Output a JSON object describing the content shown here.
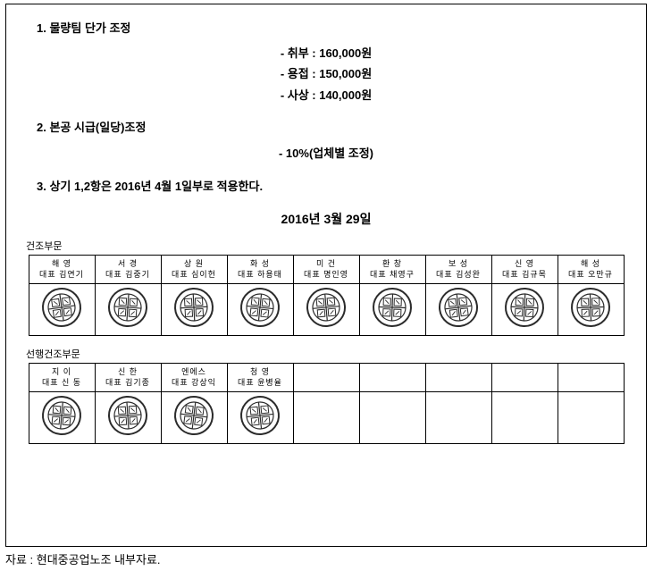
{
  "headings": {
    "item1": "1. 물량팀 단가 조정",
    "item2": "2. 본공 시급(일당)조정",
    "item3": "3. 상기 1,2항은 2016년 4월 1일부로 적용한다."
  },
  "prices": {
    "line1": "- 취부 : 160,000원",
    "line2": "- 용접 : 150,000원",
    "line3": "- 사상 : 140,000원"
  },
  "adjustment": "- 10%(업체별 조정)",
  "date": "2016년  3월  29일",
  "section1_label": "건조부문",
  "section2_label": "선행건조부문",
  "table1": [
    {
      "company": "해  영",
      "rep": "대표 김연기"
    },
    {
      "company": "서  경",
      "rep": "대표 김중기"
    },
    {
      "company": "상  원",
      "rep": "대표 심이헌"
    },
    {
      "company": "화  성",
      "rep": "대표 하용태"
    },
    {
      "company": "미  건",
      "rep": "대표 명인영"
    },
    {
      "company": "환  창",
      "rep": "대표 채영구"
    },
    {
      "company": "보  성",
      "rep": "대표 김성완"
    },
    {
      "company": "신  영",
      "rep": "대표 김규목"
    },
    {
      "company": "해  성",
      "rep": "대표 오만규"
    }
  ],
  "table2": [
    {
      "company": "지  이",
      "rep": "대표 신  동"
    },
    {
      "company": "신  한",
      "rep": "대표 김기종"
    },
    {
      "company": "엔에스",
      "rep": "대표 강상익"
    },
    {
      "company": "청  영",
      "rep": "대표 윤병율"
    },
    {
      "company": "",
      "rep": ""
    },
    {
      "company": "",
      "rep": ""
    },
    {
      "company": "",
      "rep": ""
    },
    {
      "company": "",
      "rep": ""
    },
    {
      "company": "",
      "rep": ""
    }
  ],
  "source": "자료 : 현대중공업노조 내부자료.",
  "seal_color": "#3a3a3a",
  "seal_stroke": "#2b2b2b"
}
